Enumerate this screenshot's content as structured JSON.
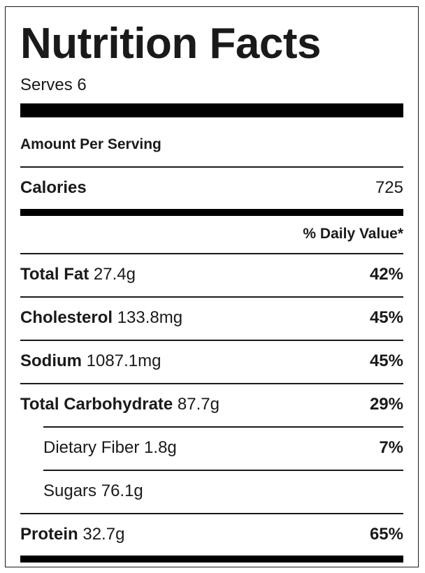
{
  "label": {
    "title": "Nutrition Facts",
    "serves": "Serves 6",
    "amount_per_serving": "Amount Per Serving",
    "calories": {
      "label": "Calories",
      "value": "725"
    },
    "daily_value_header": "% Daily Value*",
    "nutrients": [
      {
        "name": "Total Fat",
        "amount": "27.4g",
        "dv": "42%"
      },
      {
        "name": "Cholesterol",
        "amount": "133.8mg",
        "dv": "45%"
      },
      {
        "name": "Sodium",
        "amount": "1087.1mg",
        "dv": "45%"
      },
      {
        "name": "Total Carbohydrate",
        "amount": "87.7g",
        "dv": "29%"
      },
      {
        "name": "Dietary Fiber",
        "amount": "1.8g",
        "dv": "7%"
      },
      {
        "name": "Sugars",
        "amount": "76.1g",
        "dv": ""
      },
      {
        "name": "Protein",
        "amount": "32.7g",
        "dv": "65%"
      }
    ]
  }
}
